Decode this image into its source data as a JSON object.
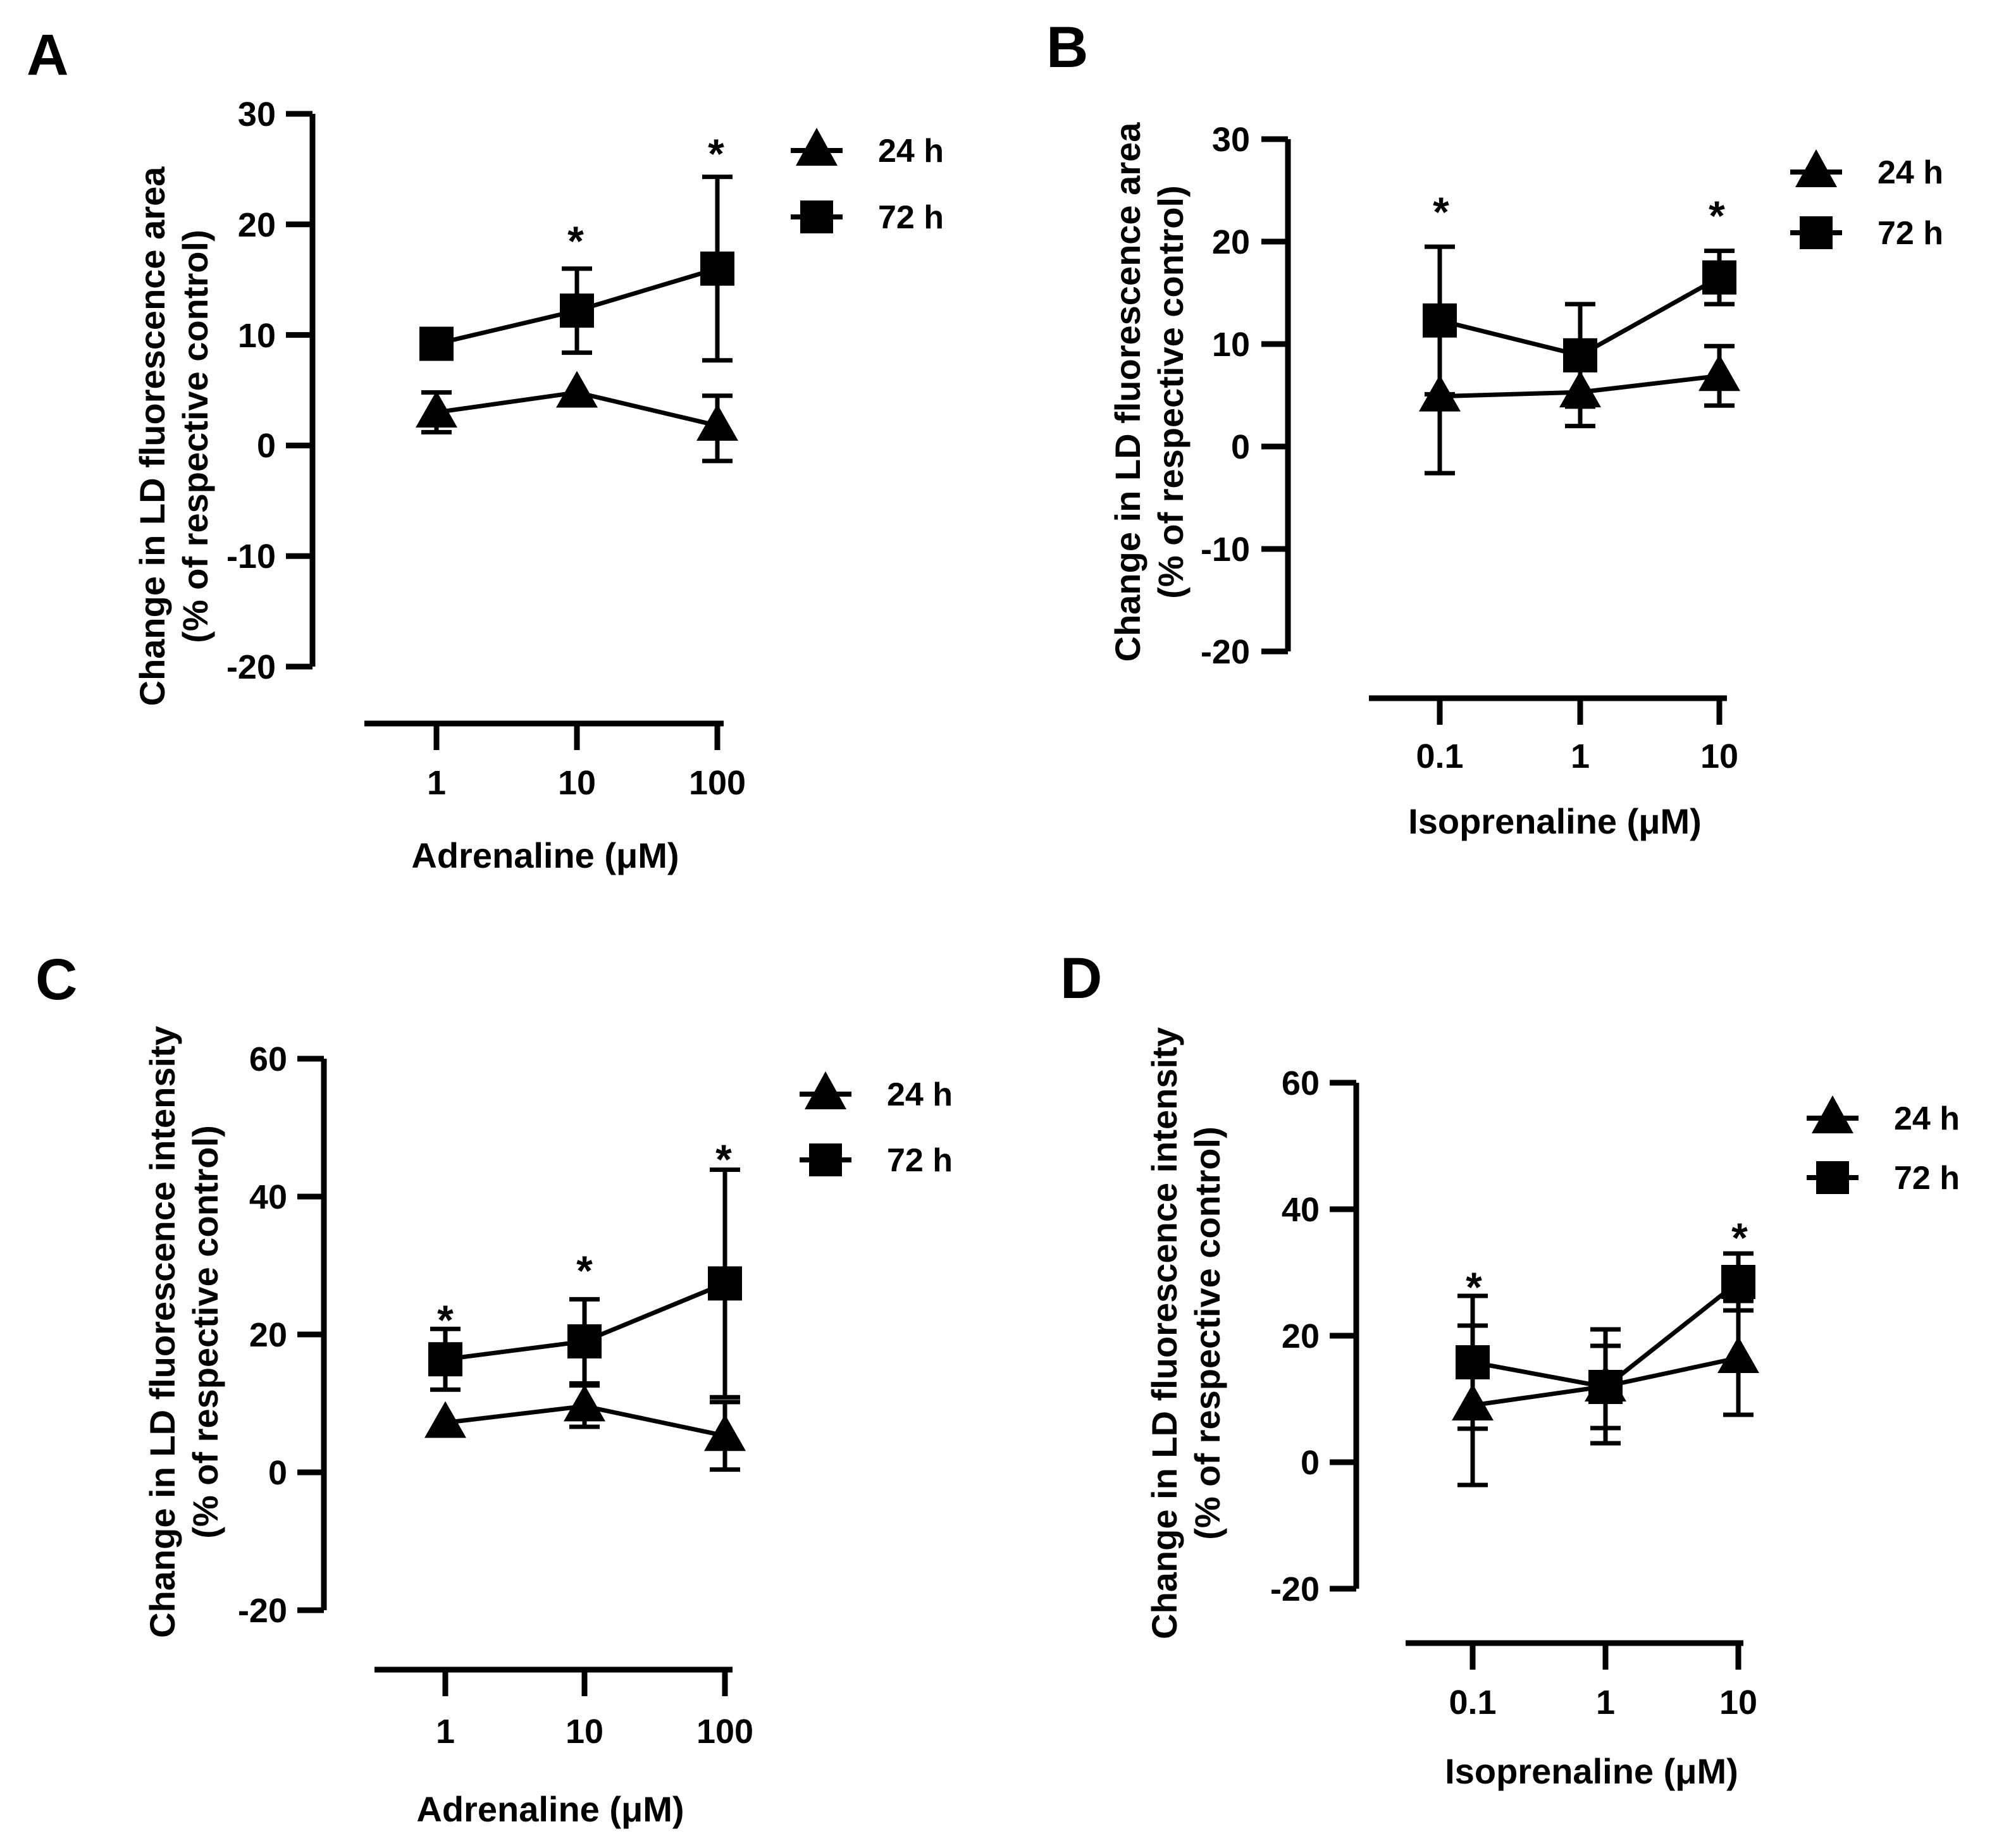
{
  "figure": {
    "panels": [
      {
        "letter": "A",
        "ylabel_line1": "Change in LD fluorescence area",
        "ylabel_line2": "(% of respective control)",
        "xlabel": "Adrenaline (μM)",
        "yticks": [
          "30",
          "20",
          "10",
          "0",
          "-10",
          "-20"
        ],
        "xticks": [
          "1",
          "10",
          "100"
        ],
        "legend": [
          "24 h",
          "72 h"
        ],
        "stars": [
          "*",
          "*"
        ]
      },
      {
        "letter": "B",
        "ylabel_line1": "Change in LD fluorescence area",
        "ylabel_line2": "(% of respective control)",
        "xlabel": "Isoprenaline (μM)",
        "yticks": [
          "30",
          "20",
          "10",
          "0",
          "-10",
          "-20"
        ],
        "xticks": [
          "0.1",
          "1",
          "10"
        ],
        "legend": [
          "24 h",
          "72 h"
        ],
        "stars": [
          "*",
          "*"
        ]
      },
      {
        "letter": "C",
        "ylabel_line1": "Change in LD fluorescence intensity",
        "ylabel_line2": "(% of respective control)",
        "xlabel": "Adrenaline (μM)",
        "yticks": [
          "60",
          "40",
          "20",
          "0",
          "-20"
        ],
        "xticks": [
          "1",
          "10",
          "100"
        ],
        "legend": [
          "24 h",
          "72 h"
        ],
        "stars": [
          "*",
          "*",
          "*"
        ]
      },
      {
        "letter": "D",
        "ylabel_line1": "Change in LD fluorescence intensity",
        "ylabel_line2": "(% of respective control)",
        "xlabel": "Isoprenaline (μM)",
        "yticks": [
          "60",
          "40",
          "20",
          "0",
          "-20"
        ],
        "xticks": [
          "0.1",
          "1",
          "10"
        ],
        "legend": [
          "24 h",
          "72 h"
        ],
        "stars": [
          "*",
          "*"
        ]
      }
    ]
  },
  "chart_data": [
    {
      "panel": "A",
      "type": "line",
      "xscale": "log",
      "x": [
        1,
        10,
        100
      ],
      "ylim": [
        -20,
        30
      ],
      "ylabel": "Change in LD fluorescence area (% of respective control)",
      "xlabel": "Adrenaline (μM)",
      "legend_position": "top-right",
      "series": [
        {
          "name": "24 h",
          "marker": "triangle",
          "values": [
            3,
            4.8,
            1.8
          ],
          "err_low": [
            1.8,
            0,
            3.2
          ],
          "err_high": [
            1.8,
            0,
            2.7
          ]
        },
        {
          "name": "72 h",
          "marker": "square",
          "values": [
            9.2,
            12.2,
            16
          ],
          "err_low": [
            0,
            3.8,
            8.3
          ],
          "err_high": [
            0,
            3.8,
            8.3
          ]
        }
      ],
      "significance": [
        {
          "x": 10,
          "label": "*"
        },
        {
          "x": 100,
          "label": "*"
        }
      ]
    },
    {
      "panel": "B",
      "type": "line",
      "xscale": "log",
      "x": [
        0.1,
        1,
        10
      ],
      "ylim": [
        -20,
        30
      ],
      "ylabel": "Change in LD fluorescence area (% of respective control)",
      "xlabel": "Isoprenaline (μM)",
      "legend_position": "top-right",
      "series": [
        {
          "name": "24 h",
          "marker": "triangle",
          "values": [
            4.9,
            5.3,
            6.9
          ],
          "err_low": [
            7.5,
            3.3,
            2.9
          ],
          "err_high": [
            7.5,
            3.3,
            2.9
          ]
        },
        {
          "name": "72 h",
          "marker": "square",
          "values": [
            12.3,
            8.9,
            16.5
          ],
          "err_low": [
            7.2,
            5.0,
            2.6
          ],
          "err_high": [
            7.2,
            5.0,
            2.6
          ]
        }
      ],
      "significance": [
        {
          "x": 0.1,
          "label": "*"
        },
        {
          "x": 10,
          "label": "*"
        }
      ]
    },
    {
      "panel": "C",
      "type": "line",
      "xscale": "log",
      "x": [
        1,
        10,
        100
      ],
      "ylim": [
        -20,
        60
      ],
      "ylabel": "Change in LD fluorescence intensity (% of respective control)",
      "xlabel": "Adrenaline (μM)",
      "legend_position": "top-right",
      "series": [
        {
          "name": "24 h",
          "marker": "triangle",
          "values": [
            7.2,
            9.6,
            5.3
          ],
          "err_low": [
            0,
            3.0,
            4.9
          ],
          "err_high": [
            0,
            3.0,
            4.9
          ]
        },
        {
          "name": "72 h",
          "marker": "square",
          "values": [
            16.4,
            19,
            27.4
          ],
          "err_low": [
            4.4,
            6.1,
            16.5
          ],
          "err_high": [
            4.4,
            6.1,
            16.5
          ]
        }
      ],
      "significance": [
        {
          "x": 1,
          "label": "*"
        },
        {
          "x": 10,
          "label": "*"
        },
        {
          "x": 100,
          "label": "*"
        }
      ]
    },
    {
      "panel": "D",
      "type": "line",
      "xscale": "log",
      "x": [
        0.1,
        1,
        10
      ],
      "ylim": [
        -20,
        60
      ],
      "ylabel": "Change in LD fluorescence intensity (% of respective control)",
      "xlabel": "Isoprenaline (μM)",
      "legend_position": "top-right",
      "series": [
        {
          "name": "24 h",
          "marker": "triangle",
          "values": [
            9,
            12,
            16.5
          ],
          "err_low": [
            12.6,
            9,
            9
          ],
          "err_high": [
            12.6,
            9,
            9
          ]
        },
        {
          "name": "72 h",
          "marker": "square",
          "values": [
            15.8,
            11.9,
            28.5
          ],
          "err_low": [
            10.5,
            6.5,
            4.5
          ],
          "err_high": [
            10.5,
            6.5,
            4.5
          ]
        }
      ],
      "significance": [
        {
          "x": 0.1,
          "label": "*"
        },
        {
          "x": 10,
          "label": "*"
        }
      ]
    }
  ]
}
